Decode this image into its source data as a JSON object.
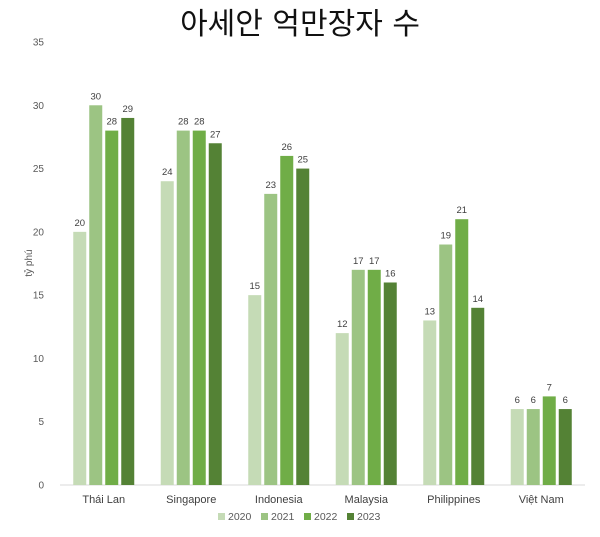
{
  "chart_data": {
    "type": "bar",
    "title": "아세안 억만장자 수",
    "ylabel": "tỷ phú",
    "xlabel": "",
    "ylim": [
      0,
      35
    ],
    "yticks": [
      0,
      5,
      10,
      15,
      20,
      25,
      30,
      35
    ],
    "categories": [
      "Thái Lan",
      "Singapore",
      "Indonesia",
      "Malaysia",
      "Philippines",
      "Việt Nam"
    ],
    "series": [
      {
        "name": "2020",
        "color": "#c5dbb6",
        "values": [
          20,
          24,
          15,
          12,
          13,
          6
        ]
      },
      {
        "name": "2021",
        "color": "#9cc483",
        "values": [
          30,
          28,
          23,
          17,
          19,
          6
        ]
      },
      {
        "name": "2022",
        "color": "#70ad47",
        "values": [
          28,
          28,
          26,
          17,
          21,
          7
        ]
      },
      {
        "name": "2023",
        "color": "#548235",
        "values": [
          29,
          27,
          25,
          16,
          14,
          6
        ]
      }
    ],
    "legend": "bottom",
    "grid": false,
    "data_labels": true
  }
}
